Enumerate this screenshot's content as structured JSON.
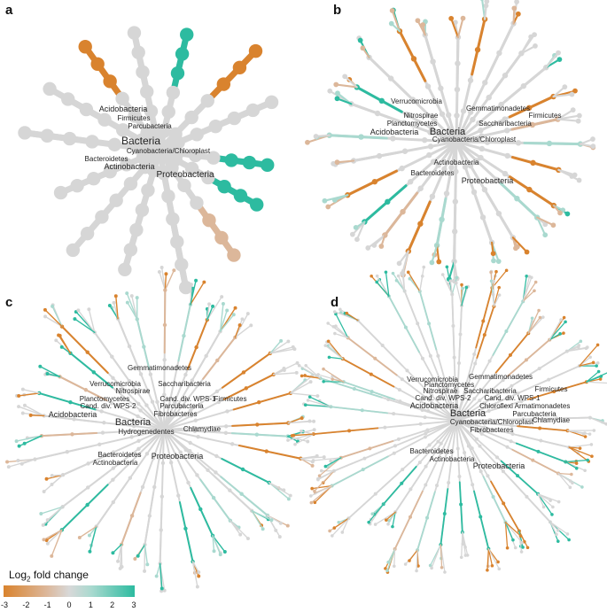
{
  "panels": [
    {
      "letter": "a",
      "labels": [
        {
          "text": "Acidobacteria",
          "size": 9
        },
        {
          "text": "Firmicutes",
          "size": 8
        },
        {
          "text": "Parcubacteria",
          "size": 8
        },
        {
          "text": "Bacteria",
          "size": 12
        },
        {
          "text": "Cyanobacteria/Chloroplast",
          "size": 8
        },
        {
          "text": "Bacteroidetes",
          "size": 8
        },
        {
          "text": "Actinobacteria",
          "size": 9
        },
        {
          "text": "Proteobacteria",
          "size": 10
        }
      ]
    },
    {
      "letter": "b",
      "labels": [
        {
          "text": "Verrucomicrobia",
          "size": 8
        },
        {
          "text": "Gemmatimonadetes",
          "size": 8
        },
        {
          "text": "Nitrospirae",
          "size": 8
        },
        {
          "text": "Firmicutes",
          "size": 8
        },
        {
          "text": "Planctomycetes",
          "size": 8
        },
        {
          "text": "Saccharibacteria",
          "size": 8
        },
        {
          "text": "Acidobacteria",
          "size": 9
        },
        {
          "text": "Bacteria",
          "size": 11
        },
        {
          "text": "Cyanobacteria/Chloroplast",
          "size": 8
        },
        {
          "text": "Actinobacteria",
          "size": 8
        },
        {
          "text": "Bacteroidetes",
          "size": 8
        },
        {
          "text": "Proteobacteria",
          "size": 9
        }
      ]
    },
    {
      "letter": "c",
      "labels": [
        {
          "text": "Gemmatimonadetes",
          "size": 8
        },
        {
          "text": "Verrucomicrobia",
          "size": 8
        },
        {
          "text": "Saccharibacteria",
          "size": 8
        },
        {
          "text": "Nitrospirae",
          "size": 8
        },
        {
          "text": "Planctomycetes",
          "size": 8
        },
        {
          "text": "Cand. div. WPS-1",
          "size": 8
        },
        {
          "text": "Firmicutes",
          "size": 8
        },
        {
          "text": "Cand. div. WPS-2",
          "size": 8
        },
        {
          "text": "Parcubacteria",
          "size": 8
        },
        {
          "text": "Acidobacteria",
          "size": 9
        },
        {
          "text": "Fibrobacteres",
          "size": 8
        },
        {
          "text": "Bacteria",
          "size": 11
        },
        {
          "text": "Chlamydiae",
          "size": 8
        },
        {
          "text": "Hydrogenedentes",
          "size": 8
        },
        {
          "text": "Bacteroidetes",
          "size": 8
        },
        {
          "text": "Proteobacteria",
          "size": 9
        },
        {
          "text": "Actinobacteria",
          "size": 8
        }
      ]
    },
    {
      "letter": "d",
      "labels": [
        {
          "text": "Verrucomicrobia",
          "size": 8
        },
        {
          "text": "Gemmatimonadetes",
          "size": 8
        },
        {
          "text": "Planctomycetes",
          "size": 8
        },
        {
          "text": "Nitrospirae",
          "size": 8
        },
        {
          "text": "Saccharibacteria",
          "size": 8
        },
        {
          "text": "Firmicutes",
          "size": 8
        },
        {
          "text": "Cand. div. WPS-2",
          "size": 8
        },
        {
          "text": "Cand. div. WPS-1",
          "size": 8
        },
        {
          "text": "Acidobacteria",
          "size": 9
        },
        {
          "text": "Chloroflexi",
          "size": 8
        },
        {
          "text": "Armatimonadetes",
          "size": 8
        },
        {
          "text": "Bacteria",
          "size": 11
        },
        {
          "text": "Parcubacteria",
          "size": 8
        },
        {
          "text": "Cyanobacteria/Chloroplast",
          "size": 8
        },
        {
          "text": "Chlamydiae",
          "size": 8
        },
        {
          "text": "Fibrobacteres",
          "size": 8
        },
        {
          "text": "Bacteroidetes",
          "size": 8
        },
        {
          "text": "Actinobacteria",
          "size": 8
        },
        {
          "text": "Proteobacteria",
          "size": 9
        }
      ]
    }
  ],
  "legend": {
    "title_main": "Log",
    "title_sub": "2",
    "title_rest": " fold change",
    "ticks": [
      "-3",
      "-2",
      "-1",
      "0",
      "1",
      "2",
      "3"
    ],
    "colors": {
      "low": "#d9832e",
      "mid": "#d8d8d8",
      "high": "#2dbba0"
    }
  },
  "tree_colors": {
    "orange": "#d9832e",
    "tan": "#dcb79a",
    "grey": "#d6d6d6",
    "lightteal": "#a9d9cf",
    "teal": "#2dbba0"
  }
}
